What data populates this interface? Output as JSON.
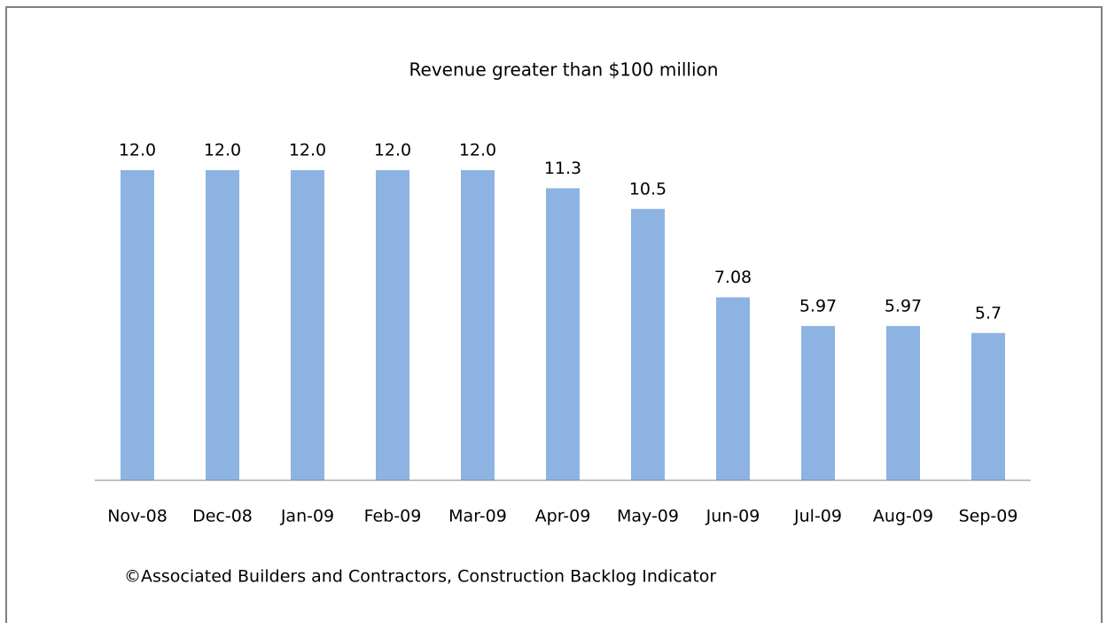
{
  "chart_data": {
    "type": "bar",
    "title": "Revenue greater than $100 million",
    "categories": [
      "Nov-08",
      "Dec-08",
      "Jan-09",
      "Feb-09",
      "Mar-09",
      "Apr-09",
      "May-09",
      "Jun-09",
      "Jul-09",
      "Aug-09",
      "Sep-09"
    ],
    "values": [
      12,
      12,
      12,
      12,
      12,
      11.3,
      10.5,
      7.08,
      5.97,
      5.97,
      5.7
    ],
    "value_labels": [
      "12.0",
      "12.0",
      "12.0",
      "12.0",
      "12.0",
      "11.3",
      "10.5",
      "7.08",
      "5.97",
      "5.97",
      "5.7"
    ],
    "color": "#8db3e2",
    "ylim": [
      0,
      12
    ],
    "source": "©Associated Builders and Contractors, Construction Backlog Indicator"
  }
}
